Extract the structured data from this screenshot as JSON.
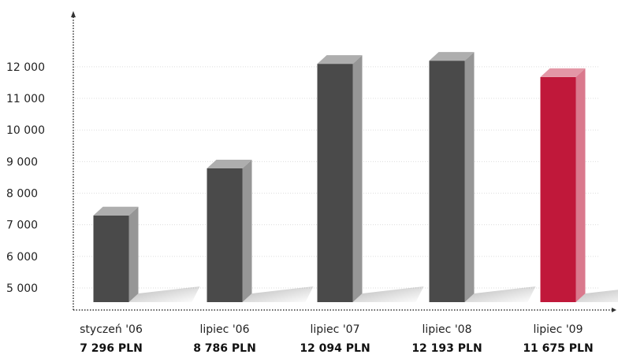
{
  "chart_data": {
    "type": "bar",
    "style": "3d-column",
    "categories": [
      "styczeń '06",
      "lipiec '06",
      "lipiec '07",
      "lipiec '08",
      "lipiec '09"
    ],
    "values": [
      7296,
      8786,
      12094,
      12193,
      11675
    ],
    "value_labels": [
      "7 296 PLN",
      "8 786 PLN",
      "12 094 PLN",
      "12 193 PLN",
      "11 675 PLN"
    ],
    "unit": "PLN",
    "y_ticks": [
      5000,
      6000,
      7000,
      8000,
      9000,
      10000,
      11000,
      12000
    ],
    "y_tick_labels": [
      "5 000",
      "6 000",
      "7 000",
      "8 000",
      "9 000",
      "10 000",
      "11 000",
      "12 000"
    ],
    "ylim": [
      4500,
      12500
    ],
    "grid": true,
    "colors": {
      "default_bar": "#4a4a4a",
      "highlight_bar": "#c0183a",
      "axis": "#333333",
      "grid": "#dddddd"
    },
    "highlight_index": 4
  }
}
